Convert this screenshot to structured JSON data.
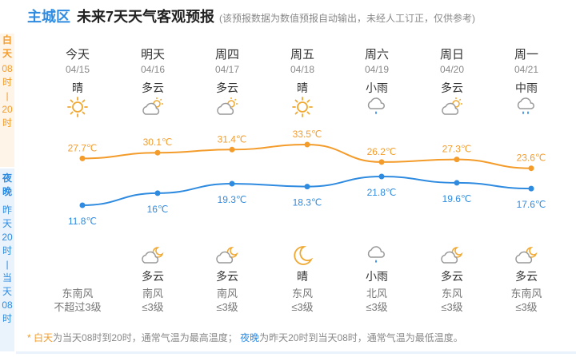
{
  "header": {
    "city": "主城区",
    "title": "未来7天天气客观预报",
    "note": "(该预报数据为数值预报自动输出，未经人工订正，仅供参考)"
  },
  "side": {
    "day_label": "白天",
    "day_sub": [
      "08",
      "时",
      "|",
      "20",
      "时"
    ],
    "night_label": "夜晚",
    "night_sub": [
      "昨",
      "天",
      "20",
      "时",
      "|",
      "当",
      "天",
      "08",
      "时"
    ]
  },
  "days": [
    {
      "name": "今天",
      "date": "04/15",
      "day_weather": "晴",
      "day_icon": "sun-icon",
      "high": "27.7℃",
      "low": "11.8℃",
      "night_weather": "",
      "night_icon": "",
      "wind_dir": "东南风",
      "wind_level": "不超过3级"
    },
    {
      "name": "明天",
      "date": "04/16",
      "day_weather": "多云",
      "day_icon": "cloudy-icon",
      "high": "30.1℃",
      "low": "16℃",
      "night_weather": "多云",
      "night_icon": "cloudy-night-icon",
      "wind_dir": "南风",
      "wind_level": "≤3级"
    },
    {
      "name": "周四",
      "date": "04/17",
      "day_weather": "多云",
      "day_icon": "cloudy-icon",
      "high": "31.4℃",
      "low": "19.3℃",
      "night_weather": "多云",
      "night_icon": "cloudy-night-icon",
      "wind_dir": "南风",
      "wind_level": "≤3级"
    },
    {
      "name": "周五",
      "date": "04/18",
      "day_weather": "晴",
      "day_icon": "sun-icon",
      "high": "33.5℃",
      "low": "18.3℃",
      "night_weather": "晴",
      "night_icon": "moon-icon",
      "wind_dir": "东风",
      "wind_level": "≤3级"
    },
    {
      "name": "周六",
      "date": "04/19",
      "day_weather": "小雨",
      "day_icon": "light-rain-icon",
      "high": "26.2℃",
      "low": "21.8℃",
      "night_weather": "小雨",
      "night_icon": "light-rain-icon",
      "wind_dir": "北风",
      "wind_level": "≤3级"
    },
    {
      "name": "周日",
      "date": "04/20",
      "day_weather": "多云",
      "day_icon": "cloudy-icon",
      "high": "27.3℃",
      "low": "19.6℃",
      "night_weather": "多云",
      "night_icon": "cloudy-night-icon",
      "wind_dir": "东风",
      "wind_level": "≤3级"
    },
    {
      "name": "周一",
      "date": "04/21",
      "day_weather": "中雨",
      "day_icon": "moderate-rain-icon",
      "high": "23.6℃",
      "low": "17.6℃",
      "night_weather": "多云",
      "night_icon": "cloudy-night-icon",
      "wind_dir": "东南风",
      "wind_level": "≤3级"
    }
  ],
  "chart_data": {
    "type": "line",
    "x": [
      "04/15",
      "04/16",
      "04/17",
      "04/18",
      "04/19",
      "04/20",
      "04/21"
    ],
    "series": [
      {
        "values": [
          27.7,
          30.1,
          31.4,
          33.5,
          26.2,
          27.3,
          23.6
        ]
      },
      {
        "values": [
          11.8,
          16,
          19.3,
          18.3,
          21.8,
          19.6,
          17.6
        ]
      }
    ]
  },
  "footnote": {
    "day_term": "白天",
    "day_text": "为当天08时到20时，通常气温为最高温度；",
    "night_term": "夜晚",
    "night_text": "为昨天20时到当天08时，通常气温为最低温度。"
  },
  "colors": {
    "high": "#f39c2b",
    "low": "#2f8be0",
    "day_bg": "#fff4e8",
    "night_bg": "#eaf3fc"
  }
}
